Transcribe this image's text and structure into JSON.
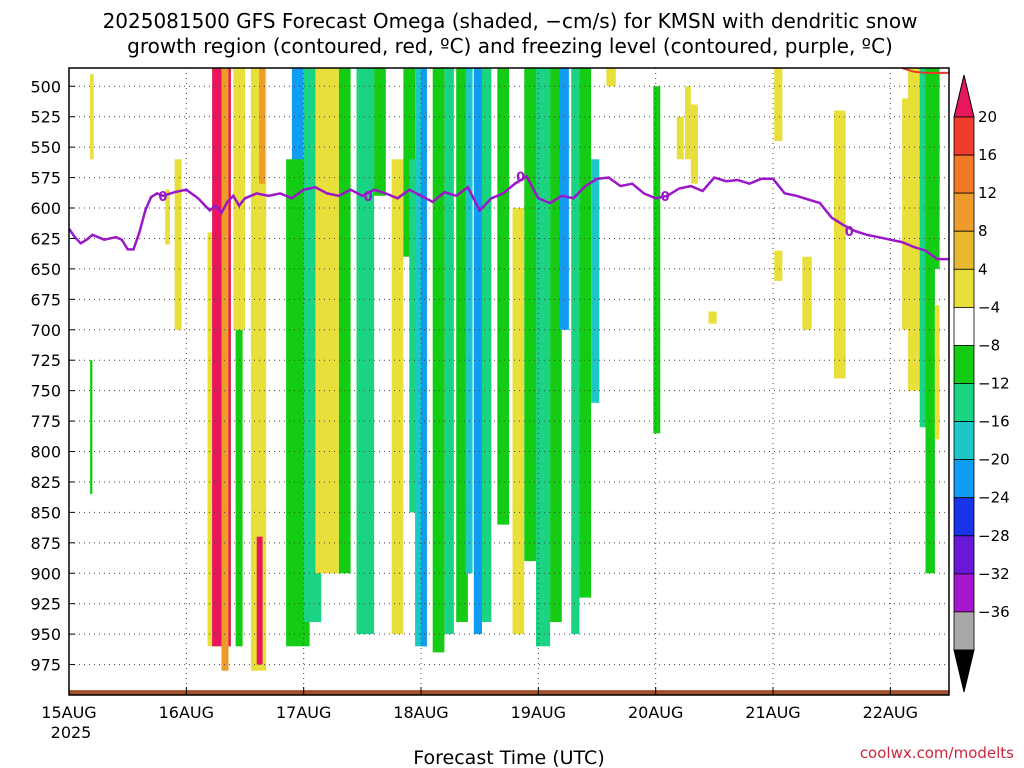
{
  "chart_data": {
    "type": "heatmap",
    "title_lines": [
      "2025081500 GFS Forecast Omega (shaded, −cm/s) for KMSN with dendritic snow",
      "growth region (contoured, red, ºC) and freezing level (contoured, purple, ºC)"
    ],
    "xlabel": "Forecast Time (UTC)",
    "ylabel": "",
    "credit": "coolwx.com/modelts",
    "x_tick_labels": [
      "15AUG",
      "16AUG",
      "17AUG",
      "18AUG",
      "19AUG",
      "20AUG",
      "21AUG",
      "22AUG"
    ],
    "x_year_label": "2025",
    "x_range_days": [
      0,
      7.5
    ],
    "y_range_hpa": [
      1000,
      485
    ],
    "y_tick_labels": [
      500,
      525,
      550,
      575,
      600,
      625,
      650,
      675,
      700,
      725,
      750,
      775,
      800,
      825,
      850,
      875,
      900,
      925,
      950,
      975
    ],
    "grid": true,
    "colorbar": {
      "placement": "right",
      "labels": [
        "20",
        "16",
        "12",
        "8",
        "4",
        "−4",
        "−8",
        "−12",
        "−16",
        "−20",
        "−24",
        "−28",
        "−32",
        "−36"
      ],
      "colors": [
        "#e8175d",
        "#f03c2c",
        "#f07a28",
        "#ee9b2c",
        "#e8b830",
        "#e8df3a",
        "#ffffff",
        "#13cc13",
        "#1ad484",
        "#1ec7c7",
        "#109cf0",
        "#1834e8",
        "#6a18d8",
        "#a616cc",
        "#a8a8a8",
        "#000000"
      ]
    },
    "series": [
      {
        "name": "0",
        "color": "#9b17c9",
        "x_days": [
          0,
          0.05,
          0.1,
          0.15,
          0.2,
          0.3,
          0.4,
          0.45,
          0.5,
          0.55,
          0.6,
          0.65,
          0.7,
          0.75,
          0.8,
          0.9,
          1.0,
          1.1,
          1.15,
          1.2,
          1.25,
          1.3,
          1.35,
          1.4,
          1.45,
          1.5,
          1.6,
          1.7,
          1.8,
          1.9,
          2.0,
          2.1,
          2.2,
          2.3,
          2.4,
          2.5,
          2.6,
          2.7,
          2.8,
          2.9,
          3.0,
          3.1,
          3.2,
          3.3,
          3.4,
          3.5,
          3.6,
          3.7,
          3.8,
          3.9,
          4.0,
          4.1,
          4.2,
          4.3,
          4.4,
          4.5,
          4.6,
          4.7,
          4.8,
          4.9,
          5.0,
          5.1,
          5.2,
          5.3,
          5.4,
          5.5,
          5.6,
          5.7,
          5.8,
          5.9,
          6.0,
          6.1,
          6.2,
          6.3,
          6.4,
          6.5,
          6.6,
          6.7,
          6.8,
          6.9,
          7.0,
          7.1,
          7.2,
          7.3,
          7.4,
          7.5
        ],
        "y_hpa": [
          617,
          624,
          629,
          626,
          622,
          626,
          624,
          626,
          634,
          634,
          620,
          602,
          591,
          588,
          590,
          587,
          585,
          592,
          597,
          602,
          598,
          604,
          595,
          590,
          598,
          592,
          588,
          590,
          588,
          592,
          585,
          583,
          588,
          590,
          585,
          590,
          585,
          588,
          592,
          585,
          590,
          595,
          587,
          590,
          583,
          602,
          592,
          588,
          580,
          574,
          592,
          596,
          590,
          592,
          582,
          576,
          575,
          582,
          580,
          588,
          592,
          590,
          584,
          582,
          586,
          575,
          578,
          577,
          580,
          576,
          576,
          588,
          590,
          593,
          596,
          608,
          614,
          619,
          622,
          624,
          626,
          628,
          632,
          635,
          642,
          642
        ]
      }
    ],
    "dgz_segment": {
      "name": "red contour",
      "color": "#e83a2a",
      "x_days": [
        7.1,
        7.2,
        7.3,
        7.5
      ],
      "y_hpa": [
        485,
        488,
        489,
        489
      ]
    },
    "ground": {
      "color": "#a0522d",
      "level_hpa": 996
    }
  }
}
